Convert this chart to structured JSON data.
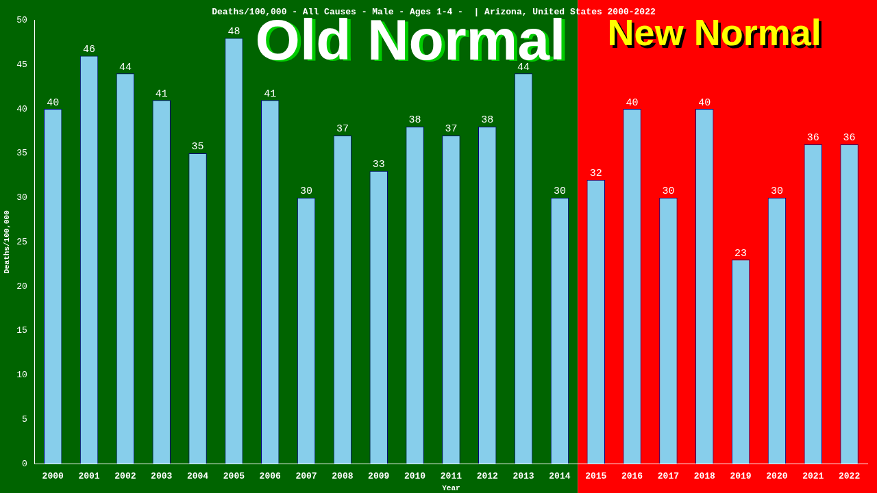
{
  "chart_data": {
    "type": "bar",
    "title": "Deaths/100,000 - All Causes - Male - Ages 1-4 -  | Arizona, United States 2000-2022",
    "xlabel": "Year",
    "ylabel": "Deaths/100,000",
    "categories": [
      "2000",
      "2001",
      "2002",
      "2003",
      "2004",
      "2005",
      "2006",
      "2007",
      "2008",
      "2009",
      "2010",
      "2011",
      "2012",
      "2013",
      "2014",
      "2015",
      "2016",
      "2017",
      "2018",
      "2019",
      "2020",
      "2021",
      "2022"
    ],
    "values": [
      40,
      46,
      44,
      41,
      35,
      48,
      41,
      30,
      37,
      33,
      38,
      37,
      38,
      44,
      30,
      32,
      40,
      30,
      40,
      23,
      30,
      36,
      36
    ],
    "color": "#87ceeb",
    "ylim": [
      0,
      50
    ],
    "yticks": [
      0,
      5,
      10,
      15,
      20,
      25,
      30,
      35,
      40,
      45,
      50
    ],
    "grid": false,
    "legend": false,
    "data_labels": true,
    "bands": [
      {
        "axis": "x",
        "from": "2000",
        "to": "2014",
        "label": "Old Normal",
        "color": "#006400"
      },
      {
        "axis": "x",
        "from": "2015",
        "to": "2022",
        "label": "New Normal",
        "color": "#ff0000"
      }
    ]
  }
}
